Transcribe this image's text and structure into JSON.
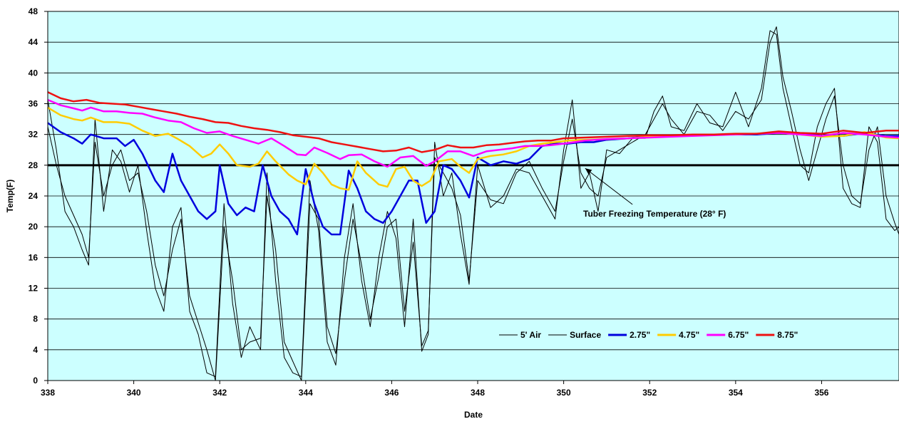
{
  "chart_data": {
    "type": "line",
    "xlabel": "Date",
    "ylabel": "Temp(F)",
    "xlim": [
      338,
      357.8
    ],
    "ylim": [
      0,
      48
    ],
    "x_ticks": [
      338,
      340,
      342,
      344,
      346,
      348,
      350,
      352,
      354,
      356
    ],
    "y_ticks": [
      0,
      4,
      8,
      12,
      16,
      20,
      24,
      28,
      32,
      36,
      40,
      44,
      48
    ],
    "grid": "horizontal",
    "plot_background": "#ccffff",
    "legend_position": "bottom-right",
    "annotation": {
      "text": "Tuber Freezing Temperature (28° F)",
      "arrow_from": [
        351.6,
        22.9
      ],
      "arrow_to": [
        350.5,
        27.6
      ]
    },
    "threshold": {
      "value": 28,
      "color": "#000000"
    },
    "series": [
      {
        "name": "5' Air",
        "color": "#000000",
        "x": [
          338,
          338.2,
          338.4,
          338.6,
          338.8,
          338.95,
          339.1,
          339.3,
          339.5,
          339.7,
          339.9,
          340.1,
          340.3,
          340.5,
          340.7,
          340.9,
          341.1,
          341.3,
          341.5,
          341.7,
          341.9,
          342.1,
          342.3,
          342.5,
          342.7,
          342.95,
          343.1,
          343.3,
          343.5,
          343.7,
          343.9,
          344.1,
          344.3,
          344.5,
          344.7,
          344.9,
          345.1,
          345.3,
          345.5,
          345.7,
          345.9,
          346.1,
          346.3,
          346.5,
          346.7,
          346.85,
          347.0,
          347.2,
          347.4,
          347.6,
          347.8,
          348.0,
          348.3,
          348.6,
          348.9,
          349.2,
          349.5,
          349.8,
          350.0,
          350.2,
          350.4,
          350.6,
          350.8,
          351.0,
          351.3,
          351.6,
          351.9,
          352.1,
          352.3,
          352.5,
          352.8,
          353.1,
          353.4,
          353.7,
          354.0,
          354.3,
          354.6,
          354.8,
          354.95,
          355.1,
          355.3,
          355.5,
          355.7,
          355.9,
          356.1,
          356.3,
          356.5,
          356.7,
          356.9,
          357.1,
          357.3,
          357.5,
          357.7,
          357.8
        ],
        "values": [
          36.5,
          30,
          22,
          20,
          17,
          15,
          34,
          22,
          30,
          28.5,
          24.5,
          28,
          19.5,
          12,
          9,
          20,
          22.5,
          9,
          6,
          1,
          0.5,
          23,
          10,
          3,
          7,
          4,
          27,
          13,
          3,
          1,
          0.5,
          26,
          19.5,
          5,
          2,
          16,
          23,
          13,
          7,
          16,
          22,
          18.5,
          7,
          21,
          3.8,
          6,
          31,
          24,
          27,
          19,
          12.5,
          28,
          22.5,
          24,
          27.5,
          27,
          24,
          21,
          30,
          36.5,
          25,
          27,
          22,
          30,
          29.5,
          31.5,
          31.5,
          35,
          37,
          33,
          32.5,
          36,
          33.5,
          33,
          37.5,
          33,
          38,
          45.5,
          45,
          38,
          33,
          28,
          27,
          33,
          36,
          38,
          25,
          23,
          22.5,
          33,
          31,
          21,
          19.5,
          20
        ]
      },
      {
        "name": "Surface",
        "color": "#000000",
        "x": [
          338,
          338.2,
          338.4,
          338.6,
          338.8,
          338.95,
          339.1,
          339.3,
          339.5,
          339.7,
          339.9,
          340.1,
          340.3,
          340.5,
          340.7,
          340.9,
          341.1,
          341.3,
          341.5,
          341.7,
          341.9,
          342.1,
          342.3,
          342.5,
          342.7,
          342.95,
          343.1,
          343.3,
          343.5,
          343.7,
          343.9,
          344.1,
          344.3,
          344.5,
          344.7,
          344.9,
          345.1,
          345.3,
          345.5,
          345.7,
          345.9,
          346.1,
          346.3,
          346.5,
          346.7,
          346.85,
          347.0,
          347.2,
          347.4,
          347.6,
          347.8,
          348.0,
          348.3,
          348.6,
          348.9,
          349.2,
          349.5,
          349.8,
          350.0,
          350.2,
          350.4,
          350.6,
          350.8,
          351.0,
          351.3,
          351.6,
          351.9,
          352.1,
          352.3,
          352.5,
          352.8,
          353.1,
          353.4,
          353.7,
          354.0,
          354.3,
          354.6,
          354.8,
          354.95,
          355.1,
          355.3,
          355.5,
          355.7,
          355.9,
          356.1,
          356.3,
          356.5,
          356.7,
          356.9,
          357.1,
          357.3,
          357.5,
          357.7,
          357.8
        ],
        "values": [
          33,
          28,
          24,
          21.5,
          19,
          16,
          31,
          24,
          28,
          30,
          26,
          27,
          22,
          15,
          11,
          17,
          21,
          11,
          7.5,
          4,
          0,
          20,
          13,
          4,
          5,
          5.5,
          24,
          17,
          5,
          2.5,
          0,
          23,
          21,
          7,
          3.5,
          13,
          21,
          15,
          8,
          13.5,
          20,
          21,
          9,
          18,
          4.5,
          6.5,
          29,
          27,
          25,
          21.5,
          13,
          26,
          23.5,
          23,
          27,
          28.5,
          25,
          22,
          28.5,
          34,
          27,
          25,
          24,
          29,
          30,
          31,
          32,
          34,
          36,
          34,
          32,
          35,
          34.5,
          32.5,
          35,
          34,
          36.5,
          44,
          46,
          39.5,
          35,
          30,
          26,
          30,
          34,
          37,
          28,
          24,
          23,
          30,
          33,
          24,
          20.5,
          19
        ]
      },
      {
        "name": "2.75\"",
        "color": "#0000dd",
        "x": [
          338,
          338.3,
          338.6,
          338.8,
          339.0,
          339.3,
          339.6,
          339.8,
          340.0,
          340.2,
          340.5,
          340.7,
          340.9,
          341.1,
          341.3,
          341.5,
          341.7,
          341.9,
          342.0,
          342.2,
          342.4,
          342.6,
          342.8,
          343.0,
          343.2,
          343.4,
          343.6,
          343.8,
          344.0,
          344.2,
          344.4,
          344.6,
          344.8,
          345.0,
          345.2,
          345.4,
          345.6,
          345.8,
          346.0,
          346.2,
          346.4,
          346.6,
          346.8,
          347.0,
          347.2,
          347.4,
          347.6,
          347.8,
          348.0,
          348.3,
          348.6,
          348.9,
          349.2,
          349.5,
          349.8,
          350.1,
          350.4,
          350.7,
          351.0,
          351.5,
          352,
          352.5,
          353,
          353.5,
          354,
          354.5,
          355,
          355.5,
          356,
          356.5,
          357,
          357.5,
          357.8
        ],
        "values": [
          33.5,
          32.3,
          31.5,
          30.8,
          32,
          31.5,
          31.5,
          30.5,
          31.3,
          29.5,
          26,
          24.5,
          29.5,
          26,
          24,
          22,
          21,
          22,
          28,
          23,
          21.5,
          22.5,
          22,
          28,
          24,
          22,
          21,
          19,
          27.5,
          23,
          20,
          19,
          19,
          27.3,
          25,
          22,
          21,
          20.5,
          22,
          24,
          26,
          26,
          20.5,
          22,
          28,
          27.5,
          26,
          23.8,
          29,
          28,
          28.5,
          28.2,
          28.8,
          30.5,
          30.8,
          30.8,
          31,
          31,
          31.3,
          31.5,
          31.8,
          31.8,
          31.9,
          32,
          32,
          32,
          32.2,
          32.1,
          31.8,
          31.8,
          32.2,
          31.8,
          31.8
        ]
      },
      {
        "name": "4.75\"",
        "color": "#ffcc00",
        "x": [
          338,
          338.3,
          338.6,
          338.8,
          339.0,
          339.3,
          339.6,
          339.9,
          340.2,
          340.5,
          340.8,
          341.0,
          341.3,
          341.6,
          341.8,
          342.0,
          342.2,
          342.4,
          342.7,
          342.9,
          343.1,
          343.3,
          343.6,
          343.8,
          344.0,
          344.2,
          344.4,
          344.6,
          344.8,
          345.0,
          345.2,
          345.4,
          345.7,
          345.9,
          346.1,
          346.3,
          346.5,
          346.7,
          346.9,
          347.1,
          347.4,
          347.6,
          347.8,
          348.0,
          348.3,
          348.6,
          348.9,
          349.2,
          349.5,
          349.8,
          350.1,
          350.5,
          351,
          351.5,
          352,
          352.5,
          353,
          353.5,
          354,
          354.5,
          355,
          355.5,
          356,
          356.5,
          357,
          357.5,
          357.8
        ],
        "values": [
          35.5,
          34.5,
          34,
          33.8,
          34.2,
          33.6,
          33.6,
          33.4,
          32.5,
          31.8,
          32.1,
          31.5,
          30.5,
          29,
          29.5,
          30.7,
          29.5,
          28,
          27.8,
          28.2,
          29.8,
          28.5,
          26.8,
          26,
          25.5,
          28.2,
          27,
          25.5,
          25,
          24.8,
          28.5,
          27,
          25.5,
          25.2,
          27.5,
          27.8,
          26,
          25.3,
          26,
          28.5,
          28.8,
          27.8,
          27,
          28.8,
          29.2,
          29.4,
          29.8,
          30.5,
          30.8,
          31,
          31.2,
          31.3,
          31.4,
          31.5,
          31.7,
          31.8,
          31.8,
          32,
          32,
          32.1,
          32.2,
          32.0,
          31.7,
          31.8,
          32.3,
          31.6,
          31.5
        ]
      },
      {
        "name": "6.75\"",
        "color": "#ff00ff",
        "x": [
          338,
          338.3,
          338.6,
          338.8,
          339.0,
          339.3,
          339.6,
          339.9,
          340.2,
          340.5,
          340.8,
          341.1,
          341.4,
          341.7,
          342.0,
          342.3,
          342.6,
          342.9,
          343.2,
          343.5,
          343.8,
          344.0,
          344.2,
          344.5,
          344.8,
          345.0,
          345.3,
          345.6,
          345.9,
          346.2,
          346.5,
          346.8,
          347.0,
          347.3,
          347.6,
          347.9,
          348.2,
          348.5,
          348.8,
          349.1,
          349.4,
          349.7,
          350.0,
          350.5,
          351,
          351.5,
          352,
          352.5,
          353,
          353.5,
          354,
          354.5,
          355,
          355.5,
          356,
          356.5,
          357,
          357.5,
          357.8
        ],
        "values": [
          36.5,
          35.8,
          35.4,
          35.1,
          35.5,
          35,
          35,
          34.8,
          34.7,
          34.2,
          33.8,
          33.6,
          32.8,
          32.2,
          32.4,
          31.8,
          31.3,
          30.8,
          31.5,
          30.5,
          29.4,
          29.3,
          30.3,
          29.6,
          28.8,
          29.3,
          29.4,
          28.5,
          27.8,
          29,
          29.2,
          27.9,
          28.5,
          29.8,
          29.8,
          29.2,
          29.8,
          30,
          30.2,
          30.5,
          30.5,
          30.6,
          30.8,
          31.2,
          31.4,
          31.5,
          31.6,
          31.7,
          31.8,
          31.9,
          32,
          32.1,
          32.2,
          32.0,
          31.8,
          32.2,
          32.0,
          31.7,
          31.6
        ]
      },
      {
        "name": "8.75\"",
        "color": "#ee1111",
        "x": [
          338,
          338.3,
          338.6,
          338.9,
          339.2,
          339.5,
          339.8,
          340.1,
          340.4,
          340.7,
          341.0,
          341.3,
          341.6,
          341.9,
          342.2,
          342.5,
          342.8,
          343.1,
          343.4,
          343.7,
          344.0,
          344.3,
          344.6,
          344.9,
          345.2,
          345.5,
          345.8,
          346.1,
          346.4,
          346.7,
          347.0,
          347.3,
          347.6,
          347.9,
          348.2,
          348.5,
          348.8,
          349.1,
          349.4,
          349.7,
          350.0,
          350.5,
          351,
          351.5,
          352,
          352.5,
          353,
          353.5,
          354,
          354.5,
          355,
          355.5,
          356,
          356.5,
          357,
          357.5,
          357.8
        ],
        "values": [
          37.5,
          36.7,
          36.3,
          36.5,
          36.1,
          36,
          35.9,
          35.6,
          35.3,
          35,
          34.7,
          34.3,
          34,
          33.6,
          33.5,
          33.1,
          32.8,
          32.6,
          32.3,
          31.9,
          31.7,
          31.5,
          31,
          30.7,
          30.4,
          30.1,
          29.8,
          29.9,
          30.3,
          29.7,
          30,
          30.6,
          30.3,
          30.3,
          30.6,
          30.7,
          30.9,
          31.1,
          31.2,
          31.2,
          31.5,
          31.6,
          31.7,
          31.8,
          31.9,
          31.9,
          32,
          32,
          32.1,
          32.1,
          32.4,
          32.2,
          32.1,
          32.5,
          32.2,
          32.5,
          32.5
        ]
      }
    ]
  }
}
